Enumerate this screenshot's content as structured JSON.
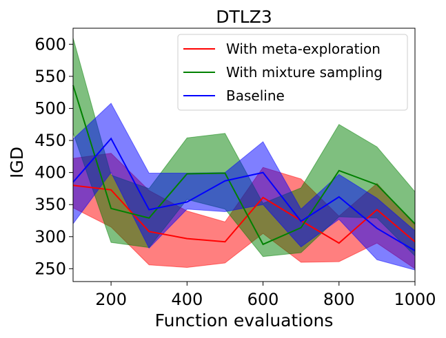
{
  "chart_data": {
    "type": "line",
    "title": "DTLZ3",
    "xlabel": "Function evaluations",
    "ylabel": "IGD",
    "xlim": [
      100,
      1000
    ],
    "ylim": [
      230,
      625
    ],
    "xticks": [
      200,
      400,
      600,
      800,
      1000
    ],
    "yticks": [
      250,
      300,
      350,
      400,
      450,
      500,
      550,
      600
    ],
    "x": [
      100,
      200,
      300,
      400,
      500,
      600,
      700,
      800,
      900,
      1000
    ],
    "legend_position": "top-right",
    "series": [
      {
        "name": "With meta-exploration",
        "color": "#ff0000",
        "values": [
          380,
          373,
          308,
          297,
          292,
          361,
          325,
          290,
          342,
          292
        ],
        "lower": [
          345,
          315,
          256,
          252,
          259,
          305,
          260,
          261,
          290,
          250
        ],
        "upper": [
          422,
          430,
          372,
          340,
          323,
          408,
          390,
          332,
          383,
          318
        ]
      },
      {
        "name": "With mixture sampling",
        "color": "#008000",
        "values": [
          536,
          344,
          329,
          398,
          399,
          288,
          314,
          403,
          381,
          320
        ],
        "lower": [
          462,
          291,
          283,
          358,
          343,
          269,
          275,
          331,
          329,
          270
        ],
        "upper": [
          610,
          396,
          375,
          454,
          461,
          352,
          376,
          475,
          440,
          370
        ]
      },
      {
        "name": "Baseline",
        "color": "#0000ff",
        "values": [
          385,
          453,
          342,
          354,
          387,
          400,
          324,
          362,
          313,
          278
        ],
        "lower": [
          320,
          400,
          282,
          343,
          339,
          350,
          284,
          327,
          264,
          248
        ],
        "upper": [
          452,
          508,
          399,
          399,
          400,
          448,
          343,
          397,
          360,
          309
        ]
      }
    ]
  }
}
